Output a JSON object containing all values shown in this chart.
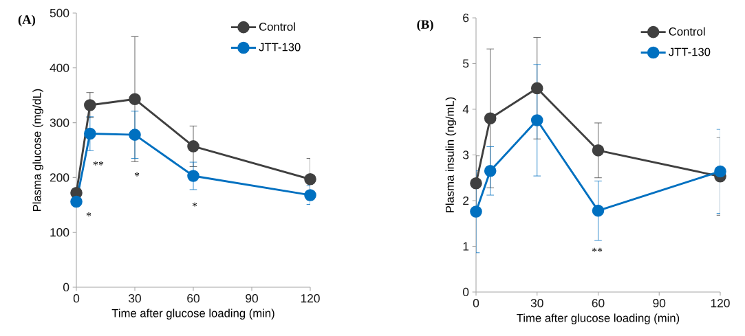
{
  "chart_data": [
    {
      "type": "line",
      "title": "(A)",
      "xlabel": "Time after glucose loading (min)",
      "ylabel": "Plasma glucose (mg/dL)",
      "x": [
        0,
        7,
        30,
        60,
        120
      ],
      "xlim": [
        0,
        120
      ],
      "xticks": [
        0,
        30,
        60,
        90,
        120
      ],
      "ylim": [
        0,
        500
      ],
      "yticks": [
        0,
        100,
        200,
        300,
        400,
        500
      ],
      "legend": "top right",
      "marker": "circle",
      "line_style": "solid",
      "series": [
        {
          "name": "Control",
          "color": "#404040",
          "values": [
            172,
            332,
            343,
            257,
            197
          ],
          "errors": [
            null,
            23,
            114,
            37,
            38
          ]
        },
        {
          "name": "JTT-130",
          "color": "#0070c0",
          "values": [
            156,
            280,
            278,
            203,
            168
          ],
          "errors": [
            null,
            31,
            43,
            25,
            17
          ]
        }
      ],
      "annotations": [
        "*",
        "**",
        "*",
        "*"
      ]
    },
    {
      "type": "line",
      "title": "(B)",
      "xlabel": "Time after glucose loading (min)",
      "ylabel": "Plasma insulin (ng/mL)",
      "x": [
        0,
        7,
        30,
        60,
        120
      ],
      "xlim": [
        0,
        120
      ],
      "xticks": [
        0,
        30,
        60,
        90,
        120
      ],
      "ylim": [
        0,
        6
      ],
      "yticks": [
        0,
        1,
        2,
        3,
        4,
        5,
        6
      ],
      "legend": "top right",
      "marker": "circle",
      "line_style": "solid",
      "series": [
        {
          "name": "Control",
          "color": "#404040",
          "values": [
            2.38,
            3.8,
            4.46,
            3.1,
            2.53
          ],
          "errors": [
            0.6,
            1.52,
            1.11,
            0.6,
            0.85
          ]
        },
        {
          "name": "JTT-130",
          "color": "#0070c0",
          "values": [
            1.76,
            2.65,
            3.76,
            1.78,
            2.64
          ],
          "errors": [
            0.9,
            0.53,
            1.22,
            0.65,
            0.92
          ]
        }
      ],
      "annotations": [
        "**"
      ]
    }
  ]
}
